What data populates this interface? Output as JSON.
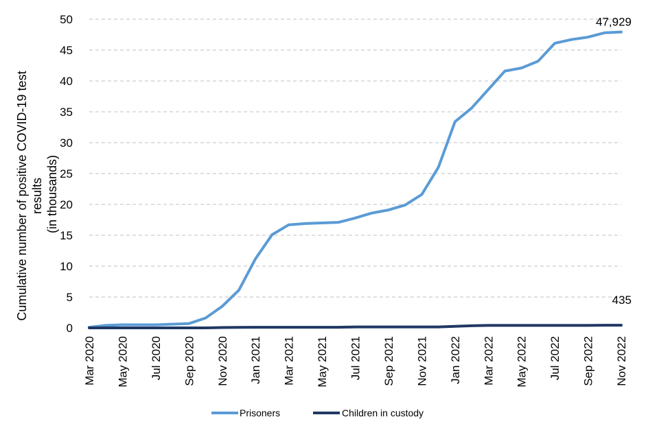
{
  "chart_data": {
    "type": "line",
    "ylabel_lines": [
      "Cumulative number of positive  COVID-19 test",
      "results",
      "(in thousands)"
    ],
    "ylim": [
      0,
      50
    ],
    "yticks": [
      0,
      5,
      10,
      15,
      20,
      25,
      30,
      35,
      40,
      45,
      50
    ],
    "grid": true,
    "legend_position": "bottom",
    "x": [
      "Mar 2020",
      "Apr 2020",
      "May 2020",
      "Jun 2020",
      "Jul 2020",
      "Aug 2020",
      "Sep 2020",
      "Oct 2020",
      "Nov 2020",
      "Dec 2020",
      "Jan 2021",
      "Feb 2021",
      "Mar 2021",
      "Apr 2021",
      "May 2021",
      "Jun 2021",
      "Jul 2021",
      "Aug 2021",
      "Sep 2021",
      "Oct 2021",
      "Nov 2021",
      "Dec 2021",
      "Jan 2022",
      "Feb 2022",
      "Mar 2022",
      "Apr 2022",
      "May 2022",
      "Jun 2022",
      "Jul 2022",
      "Aug 2022",
      "Sep 2022",
      "Oct 2022",
      "Nov 2022"
    ],
    "x_tick_labels": [
      "Mar 2020",
      "May 2020",
      "Jul 2020",
      "Sep 2020",
      "Nov 2020",
      "Jan 2021",
      "Mar 2021",
      "May 2021",
      "Jul 2021",
      "Sep 2021",
      "Nov 2021",
      "Jan 2022",
      "Mar 2022",
      "May 2022",
      "Jul 2022",
      "Sep 2022",
      "Nov 2022"
    ],
    "series": [
      {
        "name": "Prisoners",
        "color": "#5b9bd5",
        "values": [
          0.1,
          0.4,
          0.5,
          0.5,
          0.5,
          0.6,
          0.7,
          1.6,
          3.5,
          6.1,
          11.2,
          15.1,
          16.7,
          16.9,
          17.0,
          17.1,
          17.8,
          18.6,
          19.1,
          19.9,
          21.6,
          26.0,
          33.4,
          35.6,
          38.6,
          41.6,
          42.1,
          43.2,
          46.1,
          46.7,
          47.1,
          47.8,
          47.929
        ],
        "end_label": "47,929"
      },
      {
        "name": "Children in custody",
        "color": "#203864",
        "values": [
          0.0,
          0.0,
          0.0,
          0.0,
          0.0,
          0.0,
          0.0,
          0.0,
          0.05,
          0.08,
          0.1,
          0.1,
          0.1,
          0.1,
          0.1,
          0.1,
          0.15,
          0.15,
          0.15,
          0.15,
          0.15,
          0.15,
          0.25,
          0.35,
          0.4,
          0.4,
          0.4,
          0.4,
          0.4,
          0.4,
          0.4,
          0.43,
          0.435
        ],
        "end_label": "435"
      }
    ]
  }
}
